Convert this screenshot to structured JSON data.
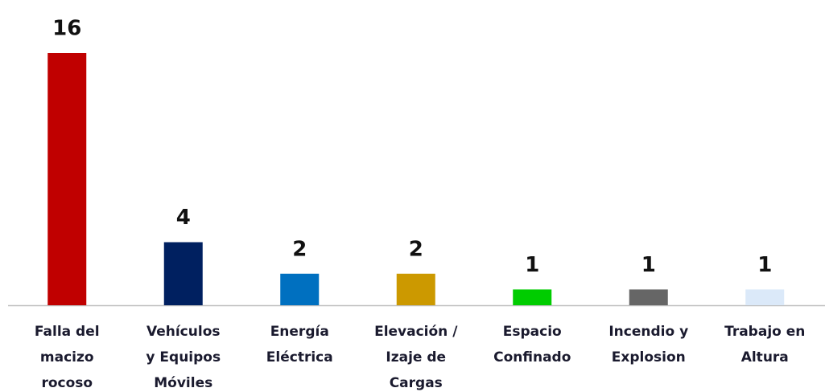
{
  "chart_data": {
    "type": "bar",
    "categories": [
      [
        "Falla del",
        "macizo",
        "rocoso"
      ],
      [
        "Vehículos",
        "y Equipos",
        "Móviles"
      ],
      [
        "Energía",
        "Eléctrica"
      ],
      [
        "Elevación /",
        "Izaje de",
        "Cargas"
      ],
      [
        "Espacio",
        "Confinado"
      ],
      [
        "Incendio y",
        "Explosion"
      ],
      [
        "Trabajo en",
        "Altura"
      ]
    ],
    "values": [
      16,
      4,
      2,
      2,
      1,
      1,
      1
    ],
    "colors": [
      "#c00000",
      "#002060",
      "#0070c0",
      "#cc9900",
      "#00cc00",
      "#666666",
      "#dbe9f9"
    ]
  }
}
